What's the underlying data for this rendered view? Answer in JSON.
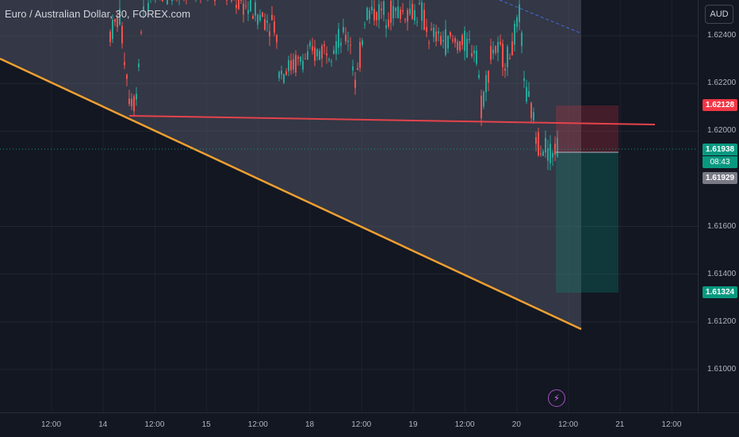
{
  "header": {
    "symbol_title": "Euro / Australian Dollar, 30, FOREX.com",
    "currency_button": "AUD"
  },
  "price_tags": {
    "sell_level": "1.62128",
    "current_price": "1.61938",
    "countdown": "08:43",
    "entry_level": "1.61929",
    "target_level": "1.61324"
  },
  "colors": {
    "background": "#131722",
    "bull_candle": "#26a69a",
    "bear_candle": "#ef5350",
    "support_line": "#f0a030",
    "resistance_line": "#e5434b",
    "trend_dash": "#3d6fdc",
    "sell_tag": "#f23645",
    "current_tag": "#089981",
    "entry_tag": "#787b86",
    "target_tag": "#089981"
  },
  "icons": {
    "event_marker": "lightning-icon"
  },
  "chart_data": {
    "type": "candlestick",
    "title": "Euro / Australian Dollar, 30, FOREX.com",
    "ylim": [
      1.6082,
      1.6255
    ],
    "y_ticks": [
      "1.62400",
      "1.62200",
      "1.62000",
      "1.61600",
      "1.61400",
      "1.61200",
      "1.61000"
    ],
    "x_ticks": [
      "12:00",
      "14",
      "12:00",
      "15",
      "12:00",
      "18",
      "12:00",
      "19",
      "12:00",
      "20",
      "12:00",
      "21",
      "12:00"
    ],
    "grid": true,
    "overlays": {
      "resistance_line": {
        "start": 1.6209,
        "end": 1.6205
      },
      "support_trendline": {
        "start": 1.6233,
        "end": 1.6115
      },
      "short_position": {
        "entry": 1.61929,
        "stop": 1.62128,
        "target": 1.61324
      },
      "current_price": 1.61938
    }
  }
}
